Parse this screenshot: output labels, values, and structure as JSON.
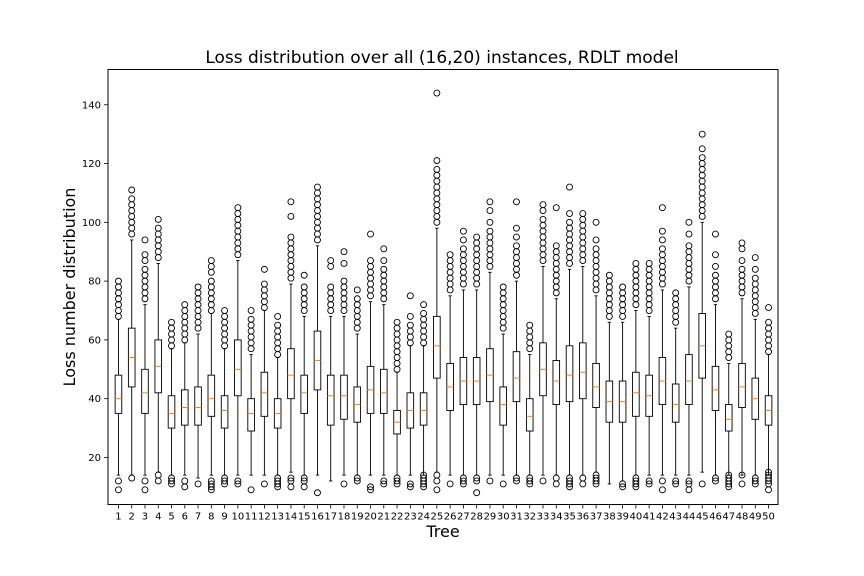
{
  "chart_data": {
    "type": "boxplot",
    "title": "Loss distribution over all (16,20) instances, RDLT model",
    "xlabel": "Tree",
    "ylabel": "Loss number distribution",
    "ylim": [
      4,
      152
    ],
    "yticks": [
      20,
      40,
      60,
      80,
      100,
      120,
      140
    ],
    "grid": false,
    "colors": {
      "box": "#000000",
      "median": "#ff7f0e",
      "flier": "#000000"
    },
    "categories": [
      "1",
      "2",
      "3",
      "4",
      "5",
      "6",
      "7",
      "8",
      "9",
      "10",
      "11",
      "12",
      "13",
      "14",
      "15",
      "16",
      "17",
      "18",
      "19",
      "20",
      "21",
      "22",
      "23",
      "24",
      "25",
      "26",
      "27",
      "28",
      "29",
      "30",
      "31",
      "32",
      "33",
      "34",
      "35",
      "36",
      "37",
      "38",
      "39",
      "40",
      "41",
      "42",
      "43",
      "44",
      "45",
      "46",
      "47",
      "48",
      "49",
      "50"
    ],
    "boxes": [
      {
        "whislo": 14,
        "q1": 35,
        "med": 40,
        "q3": 48,
        "whishi": 67,
        "fliers": [
          9,
          12,
          68,
          70,
          72,
          74,
          76,
          78,
          80
        ]
      },
      {
        "whislo": 14,
        "q1": 44,
        "med": 54,
        "q3": 64,
        "whishi": 94,
        "fliers": [
          13,
          96,
          98,
          100,
          102,
          104,
          106,
          108,
          111
        ]
      },
      {
        "whislo": 14,
        "q1": 35,
        "med": 42,
        "q3": 50,
        "whishi": 72,
        "fliers": [
          9,
          12,
          74,
          76,
          78,
          80,
          82,
          84,
          87,
          89,
          94
        ]
      },
      {
        "whislo": 15,
        "q1": 42,
        "med": 51,
        "q3": 60,
        "whishi": 86,
        "fliers": [
          12,
          14,
          88,
          90,
          92,
          94,
          96,
          98,
          101
        ]
      },
      {
        "whislo": 14,
        "q1": 30,
        "med": 35,
        "q3": 41,
        "whishi": 57,
        "fliers": [
          11,
          12,
          13,
          58,
          60,
          62,
          64,
          66
        ]
      },
      {
        "whislo": 14,
        "q1": 31,
        "med": 37,
        "q3": 43,
        "whishi": 59,
        "fliers": [
          10,
          12,
          60,
          62,
          64,
          66,
          68,
          70,
          72
        ]
      },
      {
        "whislo": 13,
        "q1": 31,
        "med": 37,
        "q3": 44,
        "whishi": 62,
        "fliers": [
          11,
          64,
          66,
          68,
          70,
          72,
          74,
          76,
          78
        ]
      },
      {
        "whislo": 14,
        "q1": 34,
        "med": 40,
        "q3": 48,
        "whishi": 69,
        "fliers": [
          9,
          10,
          11,
          12,
          70,
          72,
          74,
          76,
          78,
          80,
          83,
          85,
          87
        ]
      },
      {
        "whislo": 14,
        "q1": 30,
        "med": 36,
        "q3": 41,
        "whishi": 57,
        "fliers": [
          11,
          12,
          13,
          58,
          60,
          62,
          64,
          66,
          68,
          70
        ]
      },
      {
        "whislo": 14,
        "q1": 41,
        "med": 50,
        "q3": 60,
        "whishi": 87,
        "fliers": [
          11,
          12,
          89,
          91,
          93,
          95,
          97,
          99,
          101,
          103,
          105
        ]
      },
      {
        "whislo": 14,
        "q1": 29,
        "med": 35,
        "q3": 40,
        "whishi": 55,
        "fliers": [
          9,
          57,
          59,
          61,
          63,
          65,
          67,
          70
        ]
      },
      {
        "whislo": 14,
        "q1": 34,
        "med": 42,
        "q3": 49,
        "whishi": 70,
        "fliers": [
          11,
          71,
          73,
          75,
          77,
          79,
          84
        ]
      },
      {
        "whislo": 14,
        "q1": 30,
        "med": 35,
        "q3": 40,
        "whishi": 54,
        "fliers": [
          10,
          11,
          12,
          13,
          55,
          57,
          59,
          61,
          63,
          65,
          68
        ]
      },
      {
        "whislo": 15,
        "q1": 40,
        "med": 48,
        "q3": 57,
        "whishi": 79,
        "fliers": [
          10,
          12,
          13,
          81,
          83,
          85,
          87,
          89,
          91,
          93,
          95,
          102,
          107
        ]
      },
      {
        "whislo": 14,
        "q1": 35,
        "med": 42,
        "q3": 48,
        "whishi": 68,
        "fliers": [
          10,
          12,
          13,
          70,
          72,
          74,
          76,
          78,
          82
        ]
      },
      {
        "whislo": 14,
        "q1": 43,
        "med": 53,
        "q3": 63,
        "whishi": 92,
        "fliers": [
          8,
          94,
          96,
          98,
          100,
          102,
          104,
          106,
          108,
          110,
          112
        ]
      },
      {
        "whislo": 12,
        "q1": 31,
        "med": 41,
        "q3": 48,
        "whishi": 68,
        "fliers": [
          70,
          72,
          74,
          76,
          78,
          85,
          87
        ]
      },
      {
        "whislo": 14,
        "q1": 33,
        "med": 41,
        "q3": 48,
        "whishi": 68,
        "fliers": [
          11,
          70,
          72,
          74,
          76,
          78,
          80,
          86,
          90
        ]
      },
      {
        "whislo": 14,
        "q1": 32,
        "med": 38,
        "q3": 44,
        "whishi": 62,
        "fliers": [
          12,
          13,
          64,
          66,
          68,
          70,
          72,
          74,
          77
        ]
      },
      {
        "whislo": 14,
        "q1": 35,
        "med": 43,
        "q3": 51,
        "whishi": 73,
        "fliers": [
          9,
          10,
          75,
          77,
          79,
          81,
          83,
          85,
          87,
          96
        ]
      },
      {
        "whislo": 14,
        "q1": 35,
        "med": 42,
        "q3": 50,
        "whishi": 72,
        "fliers": [
          11,
          12,
          74,
          76,
          78,
          80,
          82,
          84,
          87,
          91
        ]
      },
      {
        "whislo": 14,
        "q1": 28,
        "med": 32,
        "q3": 36,
        "whishi": 49,
        "fliers": [
          11,
          12,
          13,
          50,
          52,
          54,
          56,
          58,
          60,
          62,
          64,
          66
        ]
      },
      {
        "whislo": 14,
        "q1": 30,
        "med": 36,
        "q3": 42,
        "whishi": 58,
        "fliers": [
          10,
          11,
          59,
          61,
          63,
          65,
          68,
          75
        ]
      },
      {
        "whislo": 14,
        "q1": 31,
        "med": 36,
        "q3": 42,
        "whishi": 58,
        "fliers": [
          10,
          11,
          12,
          13,
          14,
          59,
          61,
          63,
          65,
          67,
          69,
          72
        ]
      },
      {
        "whislo": 15,
        "q1": 47,
        "med": 58,
        "q3": 68,
        "whishi": 98,
        "fliers": [
          9,
          12,
          14,
          100,
          102,
          104,
          106,
          108,
          110,
          112,
          114,
          116,
          118,
          121,
          144
        ]
      },
      {
        "whislo": 14,
        "q1": 36,
        "med": 44,
        "q3": 52,
        "whishi": 75,
        "fliers": [
          11,
          77,
          79,
          81,
          83,
          85,
          87,
          89
        ]
      },
      {
        "whislo": 14,
        "q1": 38,
        "med": 46,
        "q3": 54,
        "whishi": 77,
        "fliers": [
          11,
          12,
          13,
          79,
          81,
          83,
          85,
          87,
          89,
          91,
          94,
          97
        ]
      },
      {
        "whislo": 14,
        "q1": 38,
        "med": 46,
        "q3": 54,
        "whishi": 77,
        "fliers": [
          8,
          12,
          13,
          79,
          81,
          83,
          85,
          87,
          89,
          91,
          93,
          95
        ]
      },
      {
        "whislo": 14,
        "q1": 39,
        "med": 48,
        "q3": 57,
        "whishi": 83,
        "fliers": [
          12,
          85,
          87,
          89,
          91,
          93,
          95,
          97,
          100,
          104,
          107
        ]
      },
      {
        "whislo": 14,
        "q1": 31,
        "med": 38,
        "q3": 44,
        "whishi": 62,
        "fliers": [
          11,
          64,
          66,
          68,
          70,
          72,
          74,
          76,
          78
        ]
      },
      {
        "whislo": 14,
        "q1": 39,
        "med": 47,
        "q3": 56,
        "whishi": 80,
        "fliers": [
          12,
          13,
          82,
          84,
          86,
          88,
          90,
          92,
          95,
          98,
          107
        ]
      },
      {
        "whislo": 14,
        "q1": 29,
        "med": 34,
        "q3": 40,
        "whishi": 55,
        "fliers": [
          11,
          12,
          13,
          57,
          59,
          61,
          63,
          65
        ]
      },
      {
        "whislo": 14,
        "q1": 41,
        "med": 50,
        "q3": 59,
        "whishi": 85,
        "fliers": [
          12,
          87,
          89,
          91,
          93,
          95,
          97,
          99,
          101,
          104,
          106
        ]
      },
      {
        "whislo": 14,
        "q1": 38,
        "med": 46,
        "q3": 53,
        "whishi": 74,
        "fliers": [
          11,
          13,
          76,
          78,
          80,
          82,
          84,
          86,
          88,
          90,
          92,
          105
        ]
      },
      {
        "whislo": 14,
        "q1": 39,
        "med": 48,
        "q3": 58,
        "whishi": 84,
        "fliers": [
          10,
          11,
          12,
          13,
          86,
          88,
          90,
          92,
          94,
          96,
          98,
          100,
          103,
          112
        ]
      },
      {
        "whislo": 14,
        "q1": 40,
        "med": 49,
        "q3": 59,
        "whishi": 85,
        "fliers": [
          11,
          13,
          87,
          89,
          91,
          93,
          95,
          97,
          99,
          101,
          103
        ]
      },
      {
        "whislo": 15,
        "q1": 37,
        "med": 44,
        "q3": 52,
        "whishi": 75,
        "fliers": [
          11,
          12,
          13,
          14,
          77,
          79,
          81,
          83,
          85,
          87,
          89,
          91,
          94,
          100
        ]
      },
      {
        "whislo": 11,
        "q1": 32,
        "med": 39,
        "q3": 46,
        "whishi": 66,
        "fliers": [
          68,
          70,
          72,
          74,
          76,
          78,
          80,
          82
        ]
      },
      {
        "whislo": 12,
        "q1": 32,
        "med": 39,
        "q3": 46,
        "whishi": 66,
        "fliers": [
          10,
          11,
          68,
          70,
          72,
          74,
          76,
          78
        ]
      },
      {
        "whislo": 14,
        "q1": 34,
        "med": 42,
        "q3": 49,
        "whishi": 70,
        "fliers": [
          10,
          11,
          12,
          13,
          72,
          74,
          76,
          78,
          80,
          82,
          84,
          86
        ]
      },
      {
        "whislo": 14,
        "q1": 34,
        "med": 41,
        "q3": 48,
        "whishi": 68,
        "fliers": [
          11,
          12,
          70,
          72,
          74,
          76,
          78,
          80,
          82,
          84,
          86
        ]
      },
      {
        "whislo": 14,
        "q1": 38,
        "med": 46,
        "q3": 54,
        "whishi": 77,
        "fliers": [
          9,
          12,
          79,
          81,
          83,
          85,
          87,
          89,
          91,
          94,
          97,
          105
        ]
      },
      {
        "whislo": 14,
        "q1": 32,
        "med": 38,
        "q3": 45,
        "whishi": 64,
        "fliers": [
          11,
          12,
          66,
          68,
          70,
          72,
          74,
          76
        ]
      },
      {
        "whislo": 14,
        "q1": 38,
        "med": 46,
        "q3": 55,
        "whishi": 78,
        "fliers": [
          9,
          11,
          12,
          80,
          82,
          84,
          86,
          88,
          90,
          92,
          96,
          100
        ]
      },
      {
        "whislo": 15,
        "q1": 47,
        "med": 58,
        "q3": 69,
        "whishi": 100,
        "fliers": [
          11,
          102,
          104,
          106,
          108,
          110,
          112,
          114,
          116,
          118,
          120,
          122,
          125,
          130
        ]
      },
      {
        "whislo": 14,
        "q1": 36,
        "med": 43,
        "q3": 51,
        "whishi": 72,
        "fliers": [
          12,
          13,
          74,
          76,
          78,
          80,
          82,
          85,
          89,
          96
        ]
      },
      {
        "whislo": 14,
        "q1": 29,
        "med": 33,
        "q3": 38,
        "whishi": 52,
        "fliers": [
          10,
          11,
          12,
          13,
          14,
          54,
          56,
          58,
          60,
          62
        ]
      },
      {
        "whislo": 14,
        "q1": 37,
        "med": 44,
        "q3": 52,
        "whishi": 74,
        "fliers": [
          11,
          14,
          76,
          78,
          80,
          82,
          84,
          87,
          91,
          93
        ]
      },
      {
        "whislo": 14,
        "q1": 33,
        "med": 40,
        "q3": 47,
        "whishi": 67,
        "fliers": [
          11,
          12,
          13,
          69,
          71,
          73,
          75,
          77,
          79,
          81,
          84,
          88
        ]
      },
      {
        "whislo": 14,
        "q1": 31,
        "med": 36,
        "q3": 41,
        "whishi": 55,
        "fliers": [
          9,
          11,
          12,
          13,
          14,
          15,
          56,
          58,
          60,
          62,
          64,
          66,
          71
        ]
      }
    ]
  }
}
